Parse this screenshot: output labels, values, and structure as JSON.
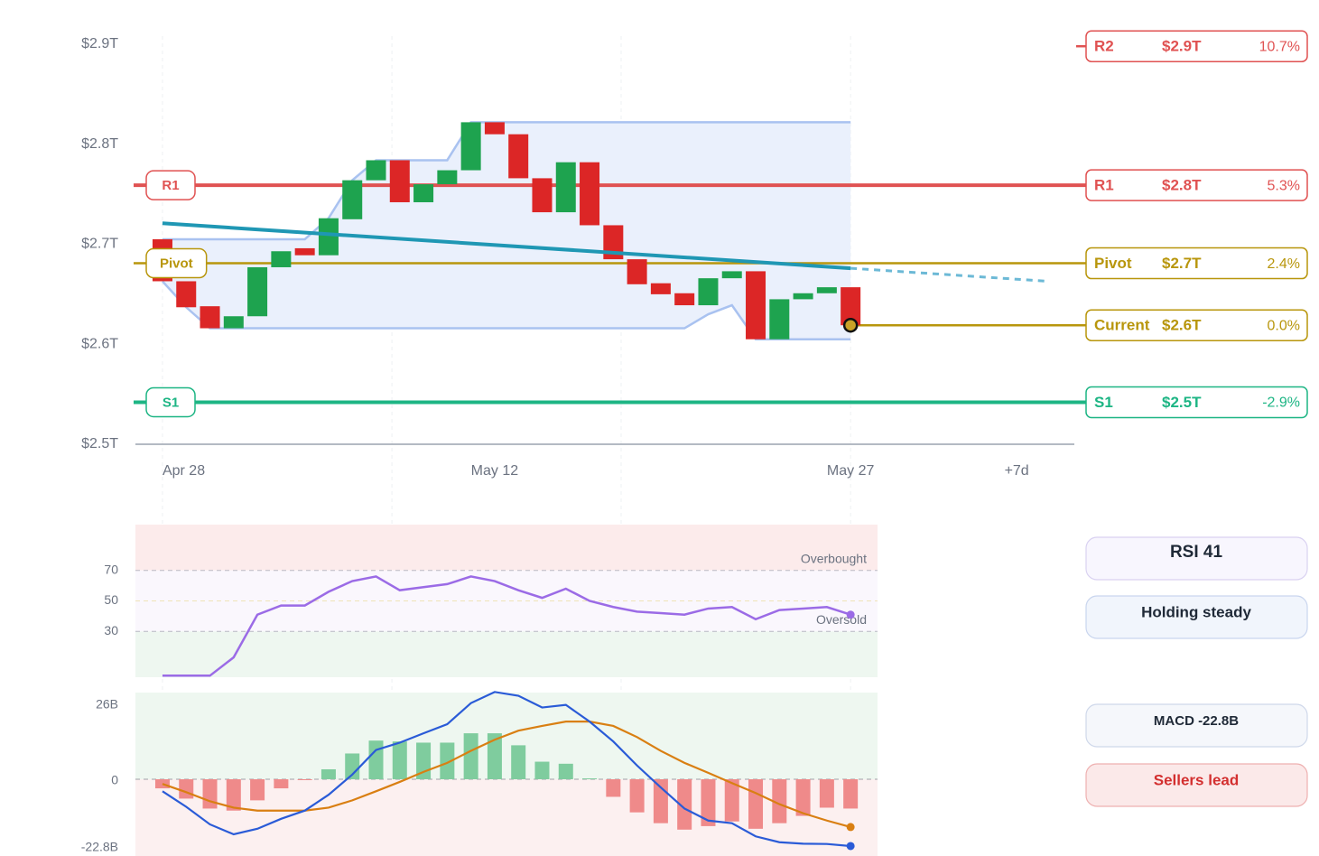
{
  "chart_data": [
    {
      "type": "candlestick",
      "x": [
        0,
        1,
        2,
        3,
        4,
        5,
        6,
        7,
        8,
        9,
        10,
        11,
        12,
        13,
        14,
        15,
        16,
        17,
        18,
        19,
        20,
        21,
        22,
        23,
        24,
        25,
        26,
        27,
        28,
        29
      ],
      "open": [
        2.705,
        2.663,
        2.638,
        2.616,
        2.628,
        2.677,
        2.696,
        2.689,
        2.725,
        2.764,
        2.784,
        2.742,
        2.76,
        2.774,
        2.822,
        2.81,
        2.766,
        2.732,
        2.782,
        2.719,
        2.685,
        2.661,
        2.651,
        2.639,
        2.666,
        2.673,
        2.605,
        2.645,
        2.651,
        2.657
      ],
      "close": [
        2.663,
        2.637,
        2.616,
        2.628,
        2.677,
        2.693,
        2.689,
        2.726,
        2.764,
        2.784,
        2.742,
        2.76,
        2.774,
        2.822,
        2.81,
        2.766,
        2.732,
        2.782,
        2.719,
        2.685,
        2.66,
        2.65,
        2.639,
        2.666,
        2.673,
        2.605,
        2.645,
        2.651,
        2.657,
        2.619
      ],
      "up_color": "#1ea34f",
      "down_color": "#dc2626",
      "band": {
        "upper": [
          2.705,
          2.705,
          2.705,
          2.705,
          2.705,
          2.705,
          2.705,
          2.726,
          2.764,
          2.784,
          2.784,
          2.784,
          2.784,
          2.822,
          2.822,
          2.822,
          2.822,
          2.822,
          2.822,
          2.822,
          2.822,
          2.822,
          2.822,
          2.822,
          2.822,
          2.822,
          2.822,
          2.822,
          2.822,
          2.822
        ],
        "lower": [
          2.663,
          2.637,
          2.616,
          2.616,
          2.616,
          2.616,
          2.616,
          2.616,
          2.616,
          2.616,
          2.616,
          2.616,
          2.616,
          2.616,
          2.616,
          2.616,
          2.616,
          2.616,
          2.616,
          2.616,
          2.616,
          2.616,
          2.616,
          2.63,
          2.639,
          2.605,
          2.605,
          2.605,
          2.605,
          2.605
        ],
        "color": "#a9c2f0",
        "fill": "#eaf0fc"
      },
      "trend": {
        "x": [
          0,
          29
        ],
        "values": [
          2.721,
          2.676
        ],
        "color": "#1f97b4"
      },
      "projection": {
        "x": [
          29,
          37.3
        ],
        "values": [
          2.676,
          2.663
        ],
        "color": "#6cb9d6"
      },
      "levels": [
        {
          "name": "R2",
          "value": 2.898,
          "value_label": "$2.9T",
          "change": "10.7%",
          "color": "#e05252",
          "line": "stub",
          "left_badge": false
        },
        {
          "name": "R1",
          "value": 2.759,
          "value_label": "$2.8T",
          "change": "5.3%",
          "color": "#e05252",
          "line": "full",
          "left_badge": true
        },
        {
          "name": "Pivot",
          "value": 2.681,
          "value_label": "$2.7T",
          "change": "2.4%",
          "color": "#b8960c",
          "line": "full",
          "left_badge": true
        },
        {
          "name": "Current",
          "value": 2.619,
          "value_label": "$2.6T",
          "change": "0.0%",
          "color": "#b8960c",
          "line": "from_last",
          "left_badge": false
        },
        {
          "name": "S1",
          "value": 2.542,
          "value_label": "$2.5T",
          "change": "-2.9%",
          "color": "#1db584",
          "line": "full",
          "left_badge": true
        }
      ],
      "xlim": [
        -1.14,
        38.43
      ],
      "xticks": [
        {
          "value": 0,
          "label": "Apr 28"
        },
        {
          "value": 14,
          "label": "May 12"
        },
        {
          "value": 29,
          "label": "May 27"
        },
        {
          "value": 36,
          "label": "+7d"
        }
      ],
      "xgrid": [
        0,
        9.67,
        19.33,
        29
      ],
      "ylim": [
        2.5,
        2.9
      ],
      "yticks": [
        {
          "value": 2.5,
          "label": "$2.5T"
        },
        {
          "value": 2.6,
          "label": "$2.6T"
        },
        {
          "value": 2.7,
          "label": "$2.7T"
        },
        {
          "value": 2.8,
          "label": "$2.8T"
        },
        {
          "value": 2.9,
          "label": "$2.9T"
        }
      ]
    },
    {
      "type": "line",
      "x": [
        0,
        1,
        2,
        3,
        4,
        5,
        6,
        7,
        8,
        9,
        10,
        11,
        12,
        13,
        14,
        15,
        16,
        17,
        18,
        19,
        20,
        21,
        22,
        23,
        24,
        25,
        26,
        27,
        28,
        29
      ],
      "values": [
        1,
        1,
        1,
        13,
        41,
        47,
        47,
        56,
        63,
        66,
        57,
        59,
        61,
        66,
        63,
        57,
        52,
        58,
        50,
        46,
        43,
        42,
        41,
        45,
        46,
        38,
        44,
        45,
        46,
        41
      ],
      "color": "#9b6be6",
      "ylim": [
        0,
        100
      ],
      "yticks": [
        30,
        50,
        70
      ],
      "zones": [
        {
          "from": 70,
          "to": 100,
          "color": "#fcebeb"
        },
        {
          "from": 30,
          "to": 70,
          "color": "#faf7fd"
        },
        {
          "from": 0,
          "to": 30,
          "color": "#eef7f0"
        }
      ],
      "annotations": [
        {
          "text": "Overbought",
          "value": 70
        },
        {
          "text": "Oversold",
          "value": 30
        }
      ]
    },
    {
      "type": "macd",
      "x": [
        0,
        1,
        2,
        3,
        4,
        5,
        6,
        7,
        8,
        9,
        10,
        11,
        12,
        13,
        14,
        15,
        16,
        17,
        18,
        19,
        20,
        21,
        22,
        23,
        24,
        25,
        26,
        27,
        28,
        29
      ],
      "histogram": [
        -3.1,
        -6.6,
        -10.0,
        -10.7,
        -7.2,
        -3.1,
        -0.3,
        3.4,
        8.8,
        13.2,
        12.9,
        12.5,
        12.5,
        15.7,
        15.7,
        11.6,
        6.0,
        5.3,
        0.3,
        -6.0,
        -11.3,
        -15.0,
        -17.2,
        -16.0,
        -14.4,
        -16.9,
        -15.0,
        -12.5,
        -9.7,
        -10.0
      ],
      "hist_colors": {
        "up": "#7fcc9e",
        "down": "#ef8a8a"
      },
      "series": [
        {
          "color": "#2a5bd7",
          "values": [
            -4.1,
            -9.4,
            -15.4,
            -18.8,
            -16.9,
            -13.5,
            -10.7,
            -5.3,
            1.6,
            10.0,
            12.5,
            15.7,
            18.8,
            26.0,
            29.8,
            28.5,
            24.5,
            25.4,
            19.7,
            12.9,
            4.7,
            -2.8,
            -10.0,
            -14.1,
            -15.0,
            -19.5,
            -21.5,
            -22.0,
            -22.1,
            -22.8
          ]
        },
        {
          "color": "#d97f12",
          "values": [
            -1.6,
            -4.4,
            -7.5,
            -9.7,
            -10.7,
            -10.7,
            -10.7,
            -9.7,
            -7.2,
            -4.1,
            -0.9,
            2.5,
            5.6,
            9.7,
            13.5,
            16.6,
            18.2,
            19.7,
            19.7,
            18.2,
            14.4,
            9.7,
            5.6,
            2.2,
            -1.3,
            -4.7,
            -8.5,
            -11.6,
            -14.1,
            -16.3
          ]
        }
      ],
      "zones": [
        {
          "from": 0,
          "to": 29.6,
          "color": "#eef7f0"
        },
        {
          "from": -26.2,
          "to": 0,
          "color": "#fcf0f0"
        }
      ],
      "ylim": [
        -26.2,
        29.6
      ],
      "yticks": [
        {
          "value": 26,
          "label": "26B"
        },
        0,
        {
          "value": -22.8,
          "label": "-22.8B"
        }
      ]
    }
  ],
  "side_panel": [
    {
      "text": "RSI 41",
      "fill": "#f8f6fe",
      "stroke": "#d9d1f1",
      "text_color": "#1f2937"
    },
    {
      "text": "Holding steady",
      "fill": "#f1f5fc",
      "stroke": "#c9d5ee",
      "text_color": "#1f2937"
    },
    {
      "text": "MACD -22.8B",
      "fill": "#f5f7fb",
      "stroke": "#cfd8ea",
      "text_color": "#1f2937"
    },
    {
      "text": "Sellers lead",
      "fill": "#fbe9e9",
      "stroke": "#eeb0b0",
      "text_color": "#d32f2f"
    }
  ]
}
